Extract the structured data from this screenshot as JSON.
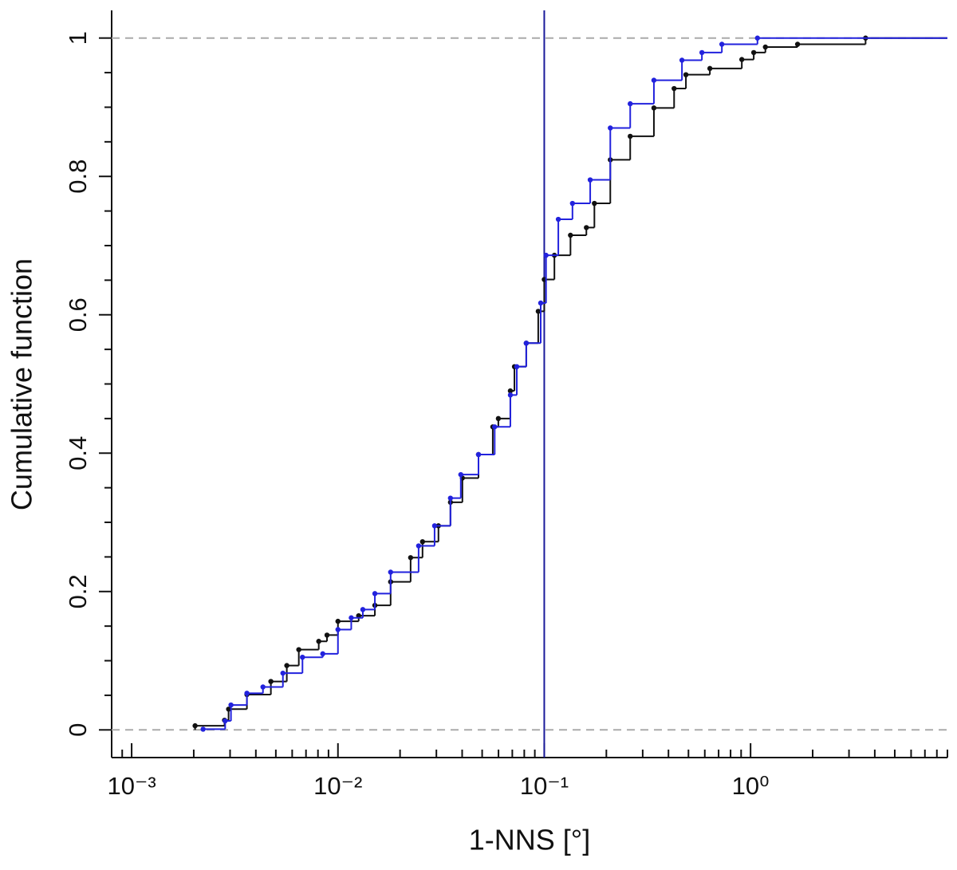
{
  "chart_data": {
    "type": "ecdf",
    "x_label": "1-NNS [°]",
    "y_label": "Cumulative function",
    "xscale": "log",
    "xlim": [
      0.0008,
      9
    ],
    "ylim": [
      -0.04,
      1.04
    ],
    "xticks": [
      {
        "value": 0.001,
        "label": "10⁻³"
      },
      {
        "value": 0.01,
        "label": "10⁻²"
      },
      {
        "value": 0.1,
        "label": "10⁻¹"
      },
      {
        "value": 1,
        "label": "10⁰"
      }
    ],
    "xminorticks": [
      0.0009,
      0.002,
      0.003,
      0.004,
      0.005,
      0.006,
      0.007,
      0.008,
      0.009,
      0.02,
      0.03,
      0.04,
      0.05,
      0.06,
      0.07,
      0.08,
      0.09,
      0.2,
      0.3,
      0.4,
      0.5,
      0.6,
      0.7,
      0.8,
      0.9,
      2,
      3,
      4,
      5,
      6,
      7,
      8,
      9
    ],
    "yticks": [
      0,
      0.2,
      0.4,
      0.6,
      0.8,
      1
    ],
    "yminorticks": [
      0.05,
      0.1,
      0.15,
      0.25,
      0.3,
      0.35,
      0.45,
      0.5,
      0.55,
      0.65,
      0.7,
      0.75,
      0.85,
      0.9,
      0.95
    ],
    "hlines": [
      0,
      1
    ],
    "hline_color": "#aaaaaa",
    "vline": 0.1,
    "vline_color": "#1a1a9a",
    "series": [
      {
        "color": "#111111",
        "x": [
          0.00203,
          0.00282,
          0.00295,
          0.00362,
          0.00473,
          0.00565,
          0.00646,
          0.00807,
          0.00885,
          0.01,
          0.0126,
          0.0151,
          0.018,
          0.0225,
          0.0257,
          0.0307,
          0.0351,
          0.0401,
          0.048,
          0.0563,
          0.0599,
          0.0685,
          0.0717,
          0.0818,
          0.0935,
          0.1,
          0.112,
          0.134,
          0.16,
          0.175,
          0.209,
          0.261,
          0.34,
          0.426,
          0.486,
          0.635,
          0.907,
          1.036,
          1.18,
          1.69,
          3.61
        ],
        "values": [
          0.006,
          0.014,
          0.03,
          0.051,
          0.07,
          0.093,
          0.116,
          0.128,
          0.137,
          0.157,
          0.165,
          0.18,
          0.214,
          0.249,
          0.272,
          0.295,
          0.329,
          0.364,
          0.398,
          0.438,
          0.45,
          0.49,
          0.525,
          0.559,
          0.605,
          0.651,
          0.686,
          0.715,
          0.726,
          0.761,
          0.824,
          0.858,
          0.899,
          0.927,
          0.947,
          0.956,
          0.969,
          0.979,
          0.987,
          0.991,
          1.0
        ]
      },
      {
        "color": "#2222dd",
        "x": [
          0.00222,
          0.00284,
          0.00303,
          0.00362,
          0.00433,
          0.00541,
          0.00673,
          0.00844,
          0.01,
          0.0116,
          0.0132,
          0.0151,
          0.018,
          0.0246,
          0.0294,
          0.0351,
          0.0394,
          0.048,
          0.0575,
          0.0685,
          0.0736,
          0.0818,
          0.0961,
          0.102,
          0.117,
          0.137,
          0.167,
          0.209,
          0.261,
          0.34,
          0.465,
          0.581,
          0.726,
          1.08
        ],
        "values": [
          0.001,
          0.013,
          0.036,
          0.053,
          0.062,
          0.082,
          0.105,
          0.11,
          0.145,
          0.162,
          0.174,
          0.197,
          0.228,
          0.266,
          0.295,
          0.335,
          0.369,
          0.398,
          0.438,
          0.484,
          0.525,
          0.559,
          0.617,
          0.686,
          0.738,
          0.761,
          0.795,
          0.87,
          0.905,
          0.939,
          0.968,
          0.979,
          0.991,
          1.0
        ]
      }
    ]
  }
}
